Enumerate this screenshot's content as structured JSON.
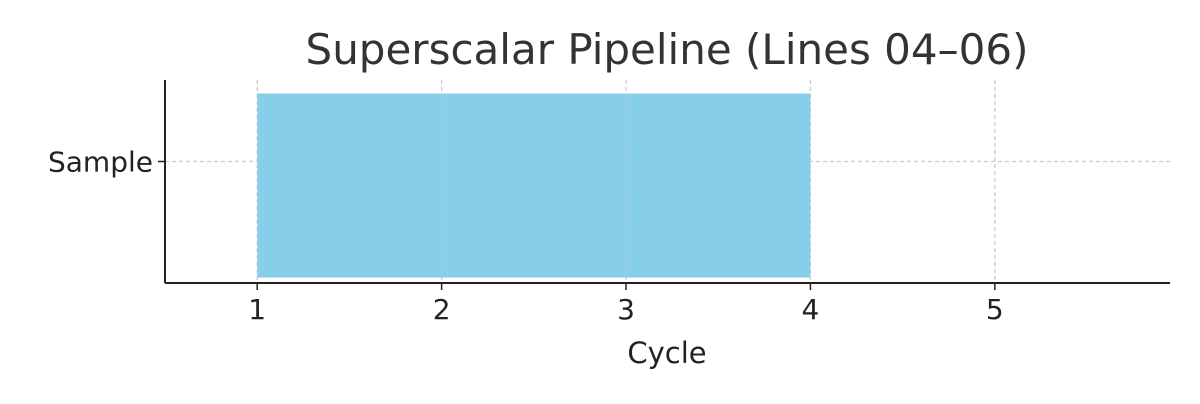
{
  "chart_data": {
    "type": "bar",
    "orientation": "horizontal",
    "title": "Superscalar Pipeline (Lines 04–06)",
    "xlabel": "Cycle",
    "ylabel": "",
    "categories": [
      "Sample"
    ],
    "series": [
      {
        "values": [
          {
            "start": 1,
            "end": 4
          }
        ],
        "color": "#87CEEB"
      }
    ],
    "xlim": [
      0.5,
      5.95
    ],
    "xticks": [
      "1",
      "2",
      "3",
      "4",
      "5"
    ],
    "grid": true,
    "legend": "none"
  }
}
